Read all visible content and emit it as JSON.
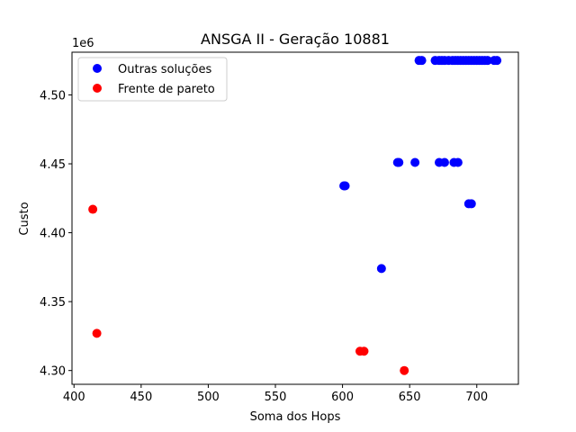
{
  "chart_data": {
    "type": "scatter",
    "title": "ANSGA II - Geração 10881",
    "xlabel": "Soma dos Hops",
    "ylabel": "Custo",
    "y_offset_label": "1e6",
    "xlim": [
      398.5,
      731
    ],
    "ylim": [
      4290000,
      4531000
    ],
    "xticks": [
      400,
      450,
      500,
      550,
      600,
      650,
      700
    ],
    "yticks": [
      4300000,
      4350000,
      4400000,
      4450000,
      4500000
    ],
    "ytick_labels": [
      "4.30",
      "4.35",
      "4.40",
      "4.45",
      "4.50"
    ],
    "grid": false,
    "legend_position": "upper-left",
    "series": [
      {
        "name": "Outras soluções",
        "color": "#0000ff",
        "points": [
          [
            657,
            4525000
          ],
          [
            659,
            4525000
          ],
          [
            669,
            4525000
          ],
          [
            672,
            4525000
          ],
          [
            674,
            4525000
          ],
          [
            676,
            4525000
          ],
          [
            679,
            4525000
          ],
          [
            682,
            4525000
          ],
          [
            684,
            4525000
          ],
          [
            686,
            4525000
          ],
          [
            688,
            4525000
          ],
          [
            690,
            4525000
          ],
          [
            692,
            4525000
          ],
          [
            694,
            4525000
          ],
          [
            696,
            4525000
          ],
          [
            698,
            4525000
          ],
          [
            700,
            4525000
          ],
          [
            702,
            4525000
          ],
          [
            704,
            4525000
          ],
          [
            706,
            4525000
          ],
          [
            708,
            4525000
          ],
          [
            713,
            4525000
          ],
          [
            715,
            4525000
          ],
          [
            641,
            4451000
          ],
          [
            642,
            4451000
          ],
          [
            654,
            4451000
          ],
          [
            672,
            4451000
          ],
          [
            676,
            4451000
          ],
          [
            683,
            4451000
          ],
          [
            686,
            4451000
          ],
          [
            601,
            4434000
          ],
          [
            602,
            4434000
          ],
          [
            694,
            4421000
          ],
          [
            696,
            4421000
          ],
          [
            629,
            4374000
          ]
        ]
      },
      {
        "name": "Frente de pareto",
        "color": "#ff0000",
        "points": [
          [
            414,
            4417000
          ],
          [
            417,
            4327000
          ],
          [
            613,
            4314000
          ],
          [
            616,
            4314000
          ],
          [
            646,
            4300000
          ]
        ]
      }
    ]
  }
}
